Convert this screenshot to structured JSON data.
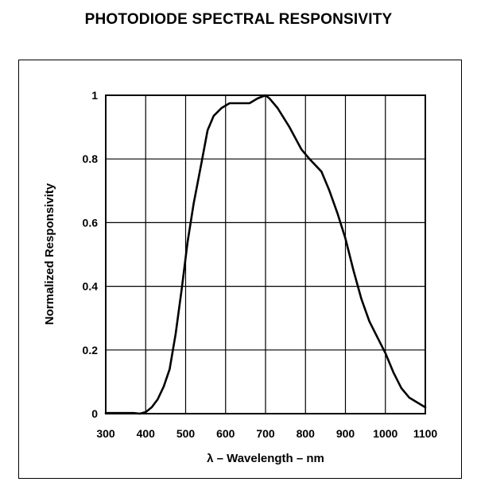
{
  "chart_data": {
    "type": "line",
    "title": "PHOTODIODE SPECTRAL RESPONSIVITY",
    "xlabel": "λ – Wavelength – nm",
    "ylabel": "Normalized Responsivity",
    "xlim": [
      300,
      1100
    ],
    "ylim": [
      0,
      1
    ],
    "xticks": [
      300,
      400,
      500,
      600,
      700,
      800,
      900,
      1000,
      1100
    ],
    "yticks": [
      0,
      0.2,
      0.4,
      0.6,
      0.8,
      1
    ],
    "ytick_labels": [
      "0",
      "0.2",
      "0.4",
      "0.6",
      "0.8",
      "1"
    ],
    "grid": true,
    "series": [
      {
        "x": [
          300,
          370,
          385,
          400,
          415,
          430,
          445,
          460,
          475,
          490,
          505,
          520,
          540,
          555,
          570,
          590,
          610,
          640,
          660,
          680,
          700,
          710,
          730,
          760,
          790,
          810,
          840,
          860,
          880,
          900,
          920,
          940,
          960,
          980,
          1000,
          1020,
          1040,
          1060,
          1080,
          1100
        ],
        "y": [
          0.002,
          0.002,
          0,
          0.005,
          0.02,
          0.045,
          0.085,
          0.14,
          0.25,
          0.39,
          0.54,
          0.66,
          0.79,
          0.89,
          0.935,
          0.96,
          0.975,
          0.975,
          0.975,
          0.99,
          1.0,
          0.99,
          0.96,
          0.9,
          0.83,
          0.8,
          0.76,
          0.7,
          0.63,
          0.55,
          0.45,
          0.36,
          0.29,
          0.24,
          0.19,
          0.13,
          0.08,
          0.05,
          0.035,
          0.02
        ]
      }
    ]
  }
}
